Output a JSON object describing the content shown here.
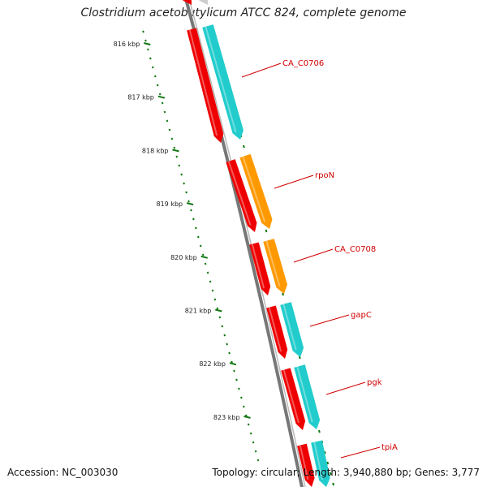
{
  "title": "Clostridium acetobutylicum ATCC 824, complete genome",
  "accession_text": "Accession: NC_003030",
  "genome_info_text": "Topology: circular; Length: 3,940,880 bp; Genes: 3,777",
  "colors": {
    "backbone": "#777777",
    "cds": "#ee0000",
    "gene_cyan": "#22cccc",
    "gene_orange": "#ff9900",
    "tick": "#117711",
    "label": "#d00000"
  },
  "ruler_labels": [
    "816 kbp",
    "817 kbp",
    "818 kbp",
    "819 kbp",
    "820 kbp",
    "821 kbp",
    "822 kbp",
    "823 kbp"
  ],
  "genes": [
    {
      "name": "CA_C0706",
      "color": "cyan"
    },
    {
      "name": "rpoN",
      "color": "orange"
    },
    {
      "name": "CA_C0708",
      "color": "orange"
    },
    {
      "name": "gapC",
      "color": "cyan"
    },
    {
      "name": "pgk",
      "color": "cyan"
    },
    {
      "name": "tpiA",
      "color": "cyan"
    }
  ]
}
